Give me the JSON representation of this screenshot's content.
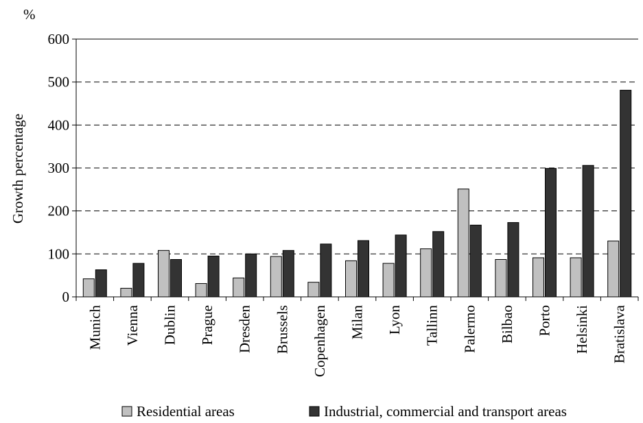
{
  "chart_data": {
    "type": "bar",
    "unit_label": "%",
    "ylabel": "Growth percentage",
    "ylim": [
      0,
      600
    ],
    "yticks": [
      0,
      100,
      200,
      300,
      400,
      500,
      600
    ],
    "grid": "horizontal dashed",
    "legend_position": "bottom",
    "categories": [
      "Munich",
      "Vienna",
      "Dublin",
      "Prague",
      "Dresden",
      "Brussels",
      "Copenhagen",
      "Milan",
      "Lyon",
      "Tallinn",
      "Palermo",
      "Bilbao",
      "Porto",
      "Helsinki",
      "Bratislava"
    ],
    "series": [
      {
        "name": "Residential areas",
        "color": "#c0c0c0",
        "values": [
          42,
          20,
          108,
          31,
          44,
          94,
          34,
          84,
          78,
          112,
          251,
          87,
          91,
          91,
          130
        ]
      },
      {
        "name": "Industrial, commercial and transport areas",
        "color": "#333333",
        "values": [
          63,
          78,
          87,
          95,
          100,
          108,
          123,
          131,
          144,
          152,
          167,
          173,
          299,
          306,
          481
        ]
      }
    ]
  }
}
